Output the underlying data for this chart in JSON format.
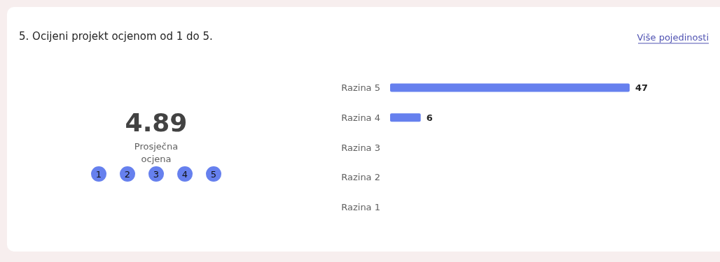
{
  "chart_data": {
    "type": "bar",
    "orientation": "horizontal",
    "title": "5. Ocijeni projekt ocjenom od 1 do 5.",
    "categories": [
      "Razina 5",
      "Razina 4",
      "Razina 3",
      "Razina 2",
      "Razina 1"
    ],
    "values": [
      47,
      6,
      0,
      0,
      0
    ],
    "value_labels": [
      "47",
      "6",
      null,
      null,
      null
    ],
    "color": "#6680ee",
    "annotations": [
      "Više pojedinosti",
      "4.89",
      "Prosječna ocjena",
      "1 2 3 4 5"
    ]
  }
}
